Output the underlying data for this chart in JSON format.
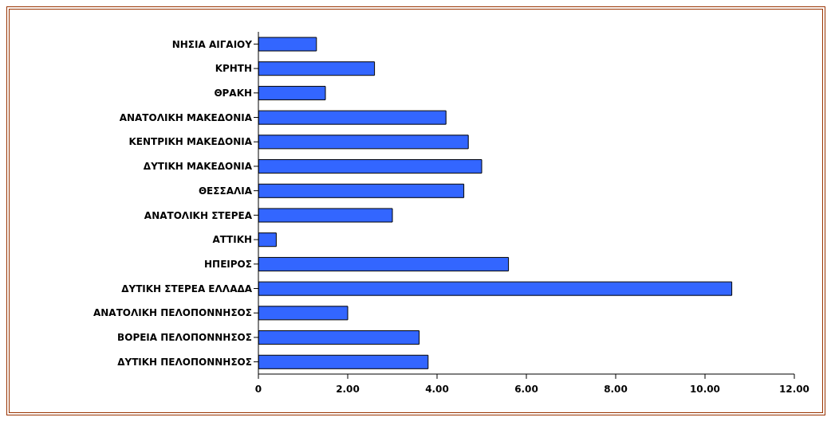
{
  "chart_data": {
    "type": "bar",
    "orientation": "horizontal",
    "categories": [
      "ΝΗΣΙΑ ΑΙΓΑΙΟΥ",
      "ΚΡΗΤΗ",
      "ΘΡΑΚΗ",
      "ΑΝΑΤΟΛΙΚΗ ΜΑΚΕΔΟΝΙΑ",
      "ΚΕΝΤΡΙΚΗ ΜΑΚΕΔΟΝΙΑ",
      "ΔΥΤΙΚΗ ΜΑΚΕΔΟΝΙΑ",
      "ΘΕΣΣΑΛΙΑ",
      "ΑΝΑΤΟΛΙΚΗ ΣΤΕΡΕΑ",
      "ΑΤΤΙΚΗ",
      "ΗΠΕΙΡΟΣ",
      "ΔΥΤΙΚΗ ΣΤΕΡΕΑ ΕΛΛΑΔΑ",
      "ΑΝΑΤΟΛΙΚΗ ΠΕΛΟΠΟΝΝΗΣΟΣ",
      "ΒΟΡΕΙΑ ΠΕΛΟΠΟΝΝΗΣΟΣ",
      "ΔΥΤΙΚΗ ΠΕΛΟΠΟΝΝΗΣΟΣ"
    ],
    "values": [
      1.3,
      2.6,
      1.5,
      4.2,
      4.7,
      5.0,
      4.6,
      3.0,
      0.4,
      5.6,
      10.6,
      2.0,
      3.6,
      3.8
    ],
    "color": "#3366ff",
    "xlim": [
      0,
      12
    ],
    "xticks": [
      0,
      {
        "value": 2,
        "label": "2.00"
      },
      {
        "value": 4,
        "label": "4.00"
      },
      {
        "value": 6,
        "label": "6.00"
      },
      {
        "value": 8,
        "label": "8.00"
      },
      {
        "value": 10,
        "label": "10.00"
      },
      {
        "value": 12,
        "label": "12.00"
      }
    ],
    "grid": false,
    "legend": false
  }
}
